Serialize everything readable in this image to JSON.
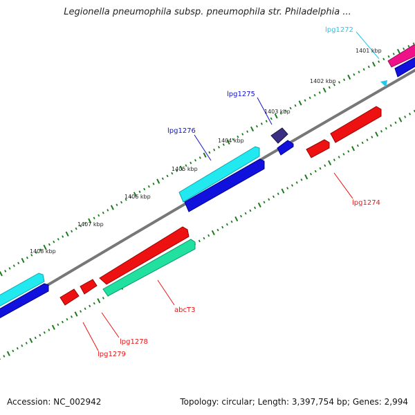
{
  "title": "Legionella pneumophila subsp. pneumophila str. Philadelphia ...",
  "footer": {
    "accession": "Accession: NC_002942",
    "stats": "Topology: circular; Length: 3,397,754 bp; Genes: 2,994"
  },
  "colors": {
    "backbone": "#777777",
    "ticks": "#1a7a1a",
    "cyan": "#22e8f0",
    "blue": "#1111dd",
    "red": "#ee1111",
    "green": "#22e0a0",
    "magenta": "#ee1188",
    "navy": "#3a2f80"
  },
  "kbp_labels": [
    "1401 kbp",
    "1402 kbp",
    "1403 kbp",
    "1404 kbp",
    "1405 kbp",
    "1406 kbp",
    "1407 kbp",
    "1408 kbp"
  ],
  "gene_labels": [
    {
      "text": "lpg1272",
      "color": "#22c8e8"
    },
    {
      "text": "lpg1275",
      "color": "#1111cc"
    },
    {
      "text": "lpg1276",
      "color": "#1111cc"
    },
    {
      "text": "lpg1274",
      "color": "#ee1111"
    },
    {
      "text": "abcT3",
      "color": "#ee1111"
    },
    {
      "text": "lpg1278",
      "color": "#ee1111"
    },
    {
      "text": "lpg1279",
      "color": "#ee1111"
    }
  ]
}
